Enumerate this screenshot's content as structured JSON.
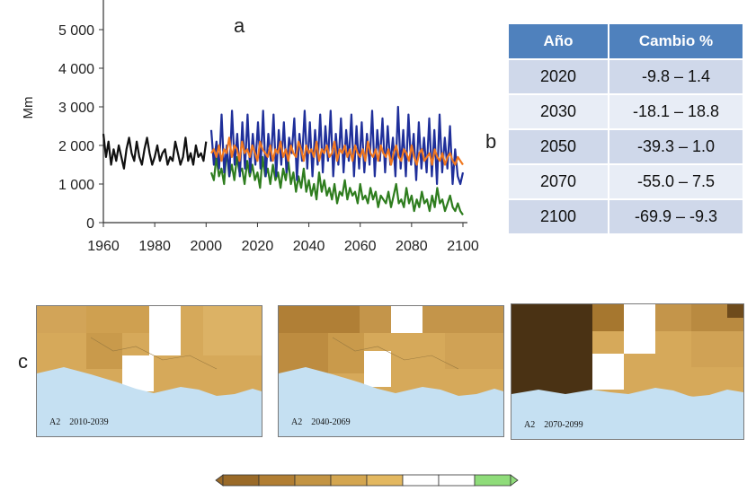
{
  "panel_letters": {
    "a": "a",
    "b": "b",
    "c": "c"
  },
  "chart_data": {
    "type": "line",
    "title": "",
    "xlabel": "",
    "ylabel": "Mm",
    "xlim": [
      1960,
      2100
    ],
    "ylim": [
      0,
      5000
    ],
    "x_ticks": [
      "1960",
      "1980",
      "2000",
      "2020",
      "2040",
      "2060",
      "2080",
      "2100"
    ],
    "y_ticks": [
      "0",
      "1 000",
      "2 000",
      "3 000",
      "4 000",
      "5 000"
    ],
    "grid": false,
    "colors": {
      "observed": "#111111",
      "blue": "#1f2f9a",
      "orange": "#f07820",
      "green": "#2e7d1e"
    },
    "series": [
      {
        "key": "observed",
        "x_start": 1960,
        "values": [
          2300,
          1700,
          2100,
          1500,
          1900,
          1600,
          2000,
          1700,
          1400,
          1900,
          2200,
          1800,
          1600,
          2100,
          1700,
          1500,
          1900,
          2200,
          1800,
          1500,
          1700,
          2000,
          1600,
          1800,
          1900,
          1500,
          1700,
          1600,
          2100,
          1800,
          1500,
          1700,
          2200,
          1600,
          1800,
          1500,
          2000,
          1700,
          1800,
          1600,
          2100
        ]
      },
      {
        "key": "blue",
        "x_start": 2002,
        "values": [
          2400,
          1500,
          2100,
          1400,
          2800,
          1300,
          2000,
          1200,
          2900,
          1500,
          2300,
          1200,
          2600,
          1400,
          2800,
          1300,
          2300,
          1500,
          2600,
          1400,
          2900,
          1200,
          2300,
          1600,
          2800,
          1200,
          2400,
          1500,
          2600,
          1300,
          2200,
          1800,
          2700,
          1100,
          2300,
          1600,
          2900,
          1400,
          2600,
          1200,
          2400,
          1500,
          2800,
          1300,
          2500,
          1600,
          2900,
          1200,
          2300,
          1500,
          2700,
          1300,
          2400,
          1600,
          2800,
          1200,
          2500,
          1400,
          2600,
          1300,
          2300,
          1500,
          2900,
          1200,
          2400,
          1600,
          2700,
          1300,
          2500,
          1500,
          2200,
          1200,
          3000,
          1400,
          2400,
          1200,
          2800,
          1500,
          2300,
          1100,
          2600,
          1400,
          2200,
          1300,
          2700,
          1200,
          2400,
          1000,
          2800,
          1300,
          2200,
          1400,
          2500,
          1000,
          1900,
          1200,
          1000,
          1300
        ]
      },
      {
        "key": "orange",
        "x_start": 2002,
        "values": [
          1800,
          1900,
          1700,
          2000,
          1600,
          1900,
          1800,
          2200,
          1700,
          2000,
          1900,
          1600,
          2100,
          1800,
          1900,
          1700,
          2000,
          1800,
          1600,
          2100,
          1900,
          1800,
          1700,
          2000,
          1600,
          1900,
          1800,
          2100,
          1700,
          1900,
          1600,
          2000,
          1800,
          1700,
          2100,
          1900,
          1600,
          2000,
          1800,
          1900,
          1700,
          2100,
          1600,
          1900,
          1800,
          2000,
          1700,
          1800,
          2100,
          1600,
          1900,
          1800,
          2000,
          1700,
          1900,
          1600,
          2000,
          1800,
          1700,
          1900,
          1600,
          2100,
          1800,
          1700,
          1900,
          1600,
          2000,
          1800,
          1700,
          1900,
          1500,
          1800,
          2000,
          1700,
          1600,
          1900,
          1800,
          1600,
          2000,
          1700,
          1500,
          1800,
          1900,
          1600,
          1700,
          1800,
          1500,
          1900,
          1700,
          1600,
          1800,
          1500,
          1700,
          1800,
          1600,
          1500,
          1700,
          1600,
          1500
        ]
      },
      {
        "key": "green",
        "x_start": 2002,
        "values": [
          1300,
          1100,
          1700,
          1200,
          1400,
          1000,
          1900,
          1200,
          1500,
          1100,
          1700,
          1300,
          1400,
          1000,
          1600,
          1200,
          1500,
          1100,
          1300,
          900,
          1700,
          1200,
          1400,
          1000,
          1500,
          1100,
          1300,
          900,
          1400,
          1100,
          1600,
          1000,
          1300,
          800,
          1200,
          900,
          1400,
          800,
          1100,
          700,
          1000,
          600,
          1300,
          800,
          1100,
          700,
          900,
          600,
          1000,
          500,
          800,
          700,
          1100,
          600,
          900,
          700,
          800,
          500,
          1000,
          600,
          700,
          500,
          900,
          600,
          800,
          400,
          700,
          600,
          500,
          800,
          400,
          700,
          1000,
          500,
          600,
          400,
          900,
          500,
          700,
          300,
          600,
          400,
          800,
          500,
          600,
          300,
          700,
          400,
          900,
          500,
          600,
          300,
          500,
          700,
          400,
          300,
          500,
          300,
          200
        ]
      }
    ]
  },
  "table": {
    "headers": [
      "Año",
      "Cambio %"
    ],
    "rows": [
      {
        "year": "2020",
        "change": "-9.8 – 1.4"
      },
      {
        "year": "2030",
        "change": "-18.1 – 18.8"
      },
      {
        "year": "2050",
        "change": "-39.3 – 1.0"
      },
      {
        "year": "2070",
        "change": "-55.0 – 7.5"
      },
      {
        "year": "2100",
        "change": "-69.9 – -9.3"
      }
    ]
  },
  "maps": [
    {
      "scenario": "A2",
      "period": "2010-2039"
    },
    {
      "scenario": "A2",
      "period": "2040-2069"
    },
    {
      "scenario": "A2",
      "period": "2070-2099"
    }
  ],
  "colorbar": {
    "colors": [
      "#9a6a28",
      "#b17e33",
      "#c39443",
      "#d4a650",
      "#e3b860",
      "#ffffff",
      "#ffffff",
      "#8fdc7a"
    ]
  }
}
